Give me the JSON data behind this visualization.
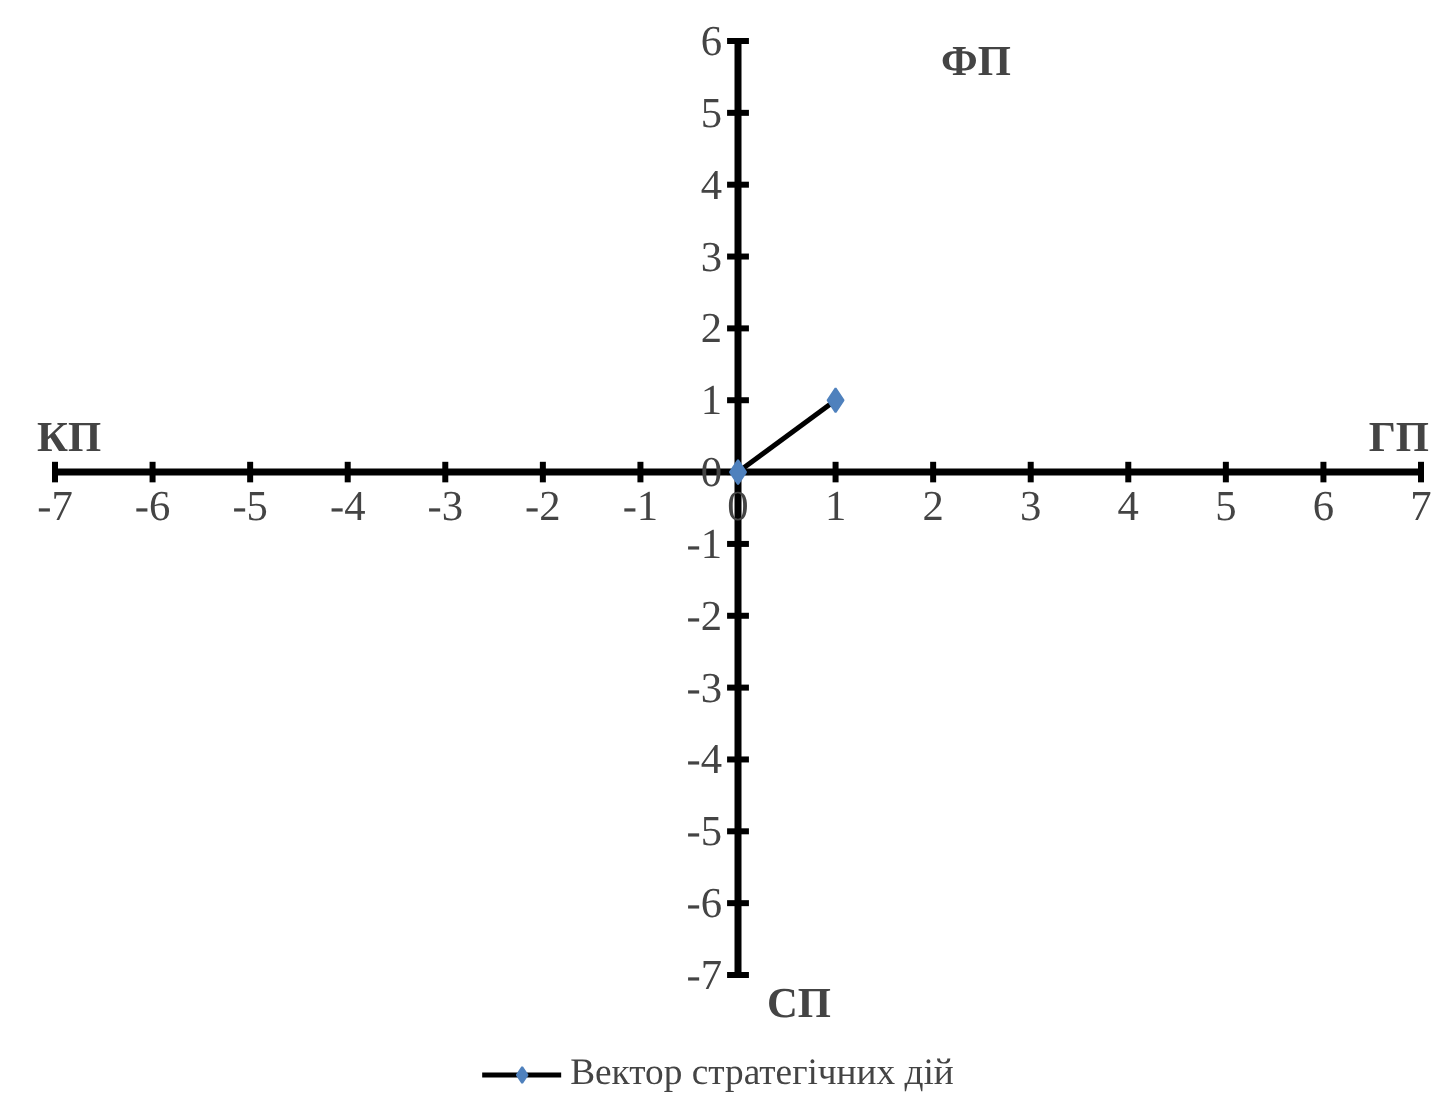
{
  "chart_data": {
    "type": "line",
    "x": [
      0,
      1
    ],
    "series": [
      {
        "name": "Вектор стратегічних дій",
        "color": "#4f81bd",
        "values": [
          0,
          1
        ]
      }
    ],
    "xlim": [
      -7,
      7
    ],
    "ylim": [
      -7,
      6
    ],
    "xticks": [
      -7,
      -6,
      -5,
      -4,
      -3,
      -2,
      -1,
      0,
      1,
      2,
      3,
      4,
      5,
      6,
      7
    ],
    "yticks": [
      -7,
      -6,
      -5,
      -4,
      -3,
      -2,
      -1,
      0,
      1,
      2,
      3,
      4,
      5,
      6
    ],
    "marker": "diamond",
    "line_style": "solid",
    "grid": false,
    "legend": "bottom",
    "annotations": [
      "ФП",
      "КП",
      "ГП",
      "СП"
    ]
  }
}
